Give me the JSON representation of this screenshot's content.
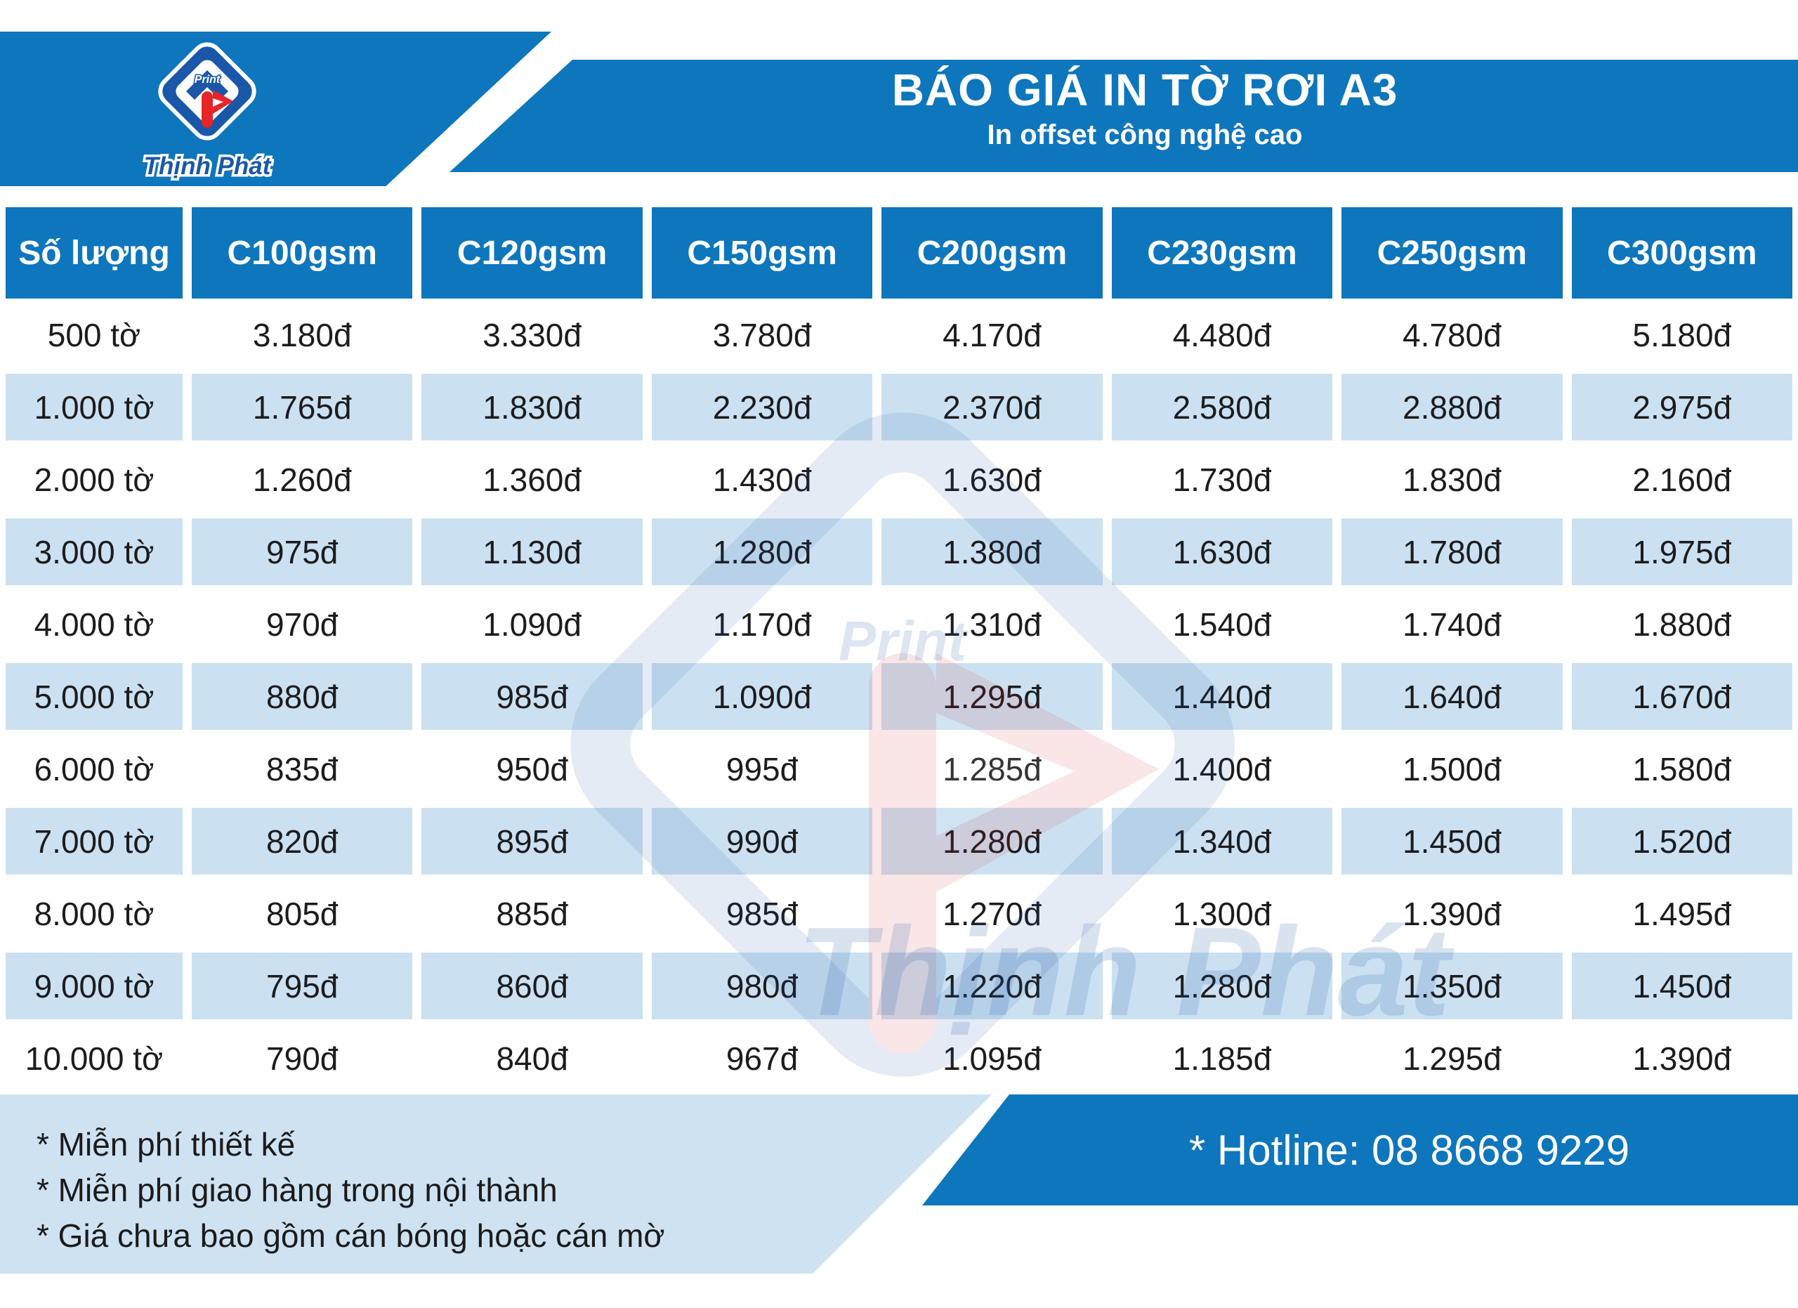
{
  "brand": {
    "name": "Thịnh Phát",
    "print_label": "Print"
  },
  "header": {
    "title": "BÁO GIÁ IN TỜ RƠI A3",
    "subtitle": "In offset công nghệ cao"
  },
  "table": {
    "columns": [
      "Số lượng",
      "C100gsm",
      "C120gsm",
      "C150gsm",
      "C200gsm",
      "C230gsm",
      "C250gsm",
      "C300gsm"
    ],
    "rows": [
      {
        "qty": "500 tờ",
        "prices": [
          "3.180đ",
          "3.330đ",
          "3.780đ",
          "4.170đ",
          "4.480đ",
          "4.780đ",
          "5.180đ"
        ]
      },
      {
        "qty": "1.000 tờ",
        "prices": [
          "1.765đ",
          "1.830đ",
          "2.230đ",
          "2.370đ",
          "2.580đ",
          "2.880đ",
          "2.975đ"
        ]
      },
      {
        "qty": "2.000 tờ",
        "prices": [
          "1.260đ",
          "1.360đ",
          "1.430đ",
          "1.630đ",
          "1.730đ",
          "1.830đ",
          "2.160đ"
        ]
      },
      {
        "qty": "3.000 tờ",
        "prices": [
          "975đ",
          "1.130đ",
          "1.280đ",
          "1.380đ",
          "1.630đ",
          "1.780đ",
          "1.975đ"
        ]
      },
      {
        "qty": "4.000 tờ",
        "prices": [
          "970đ",
          "1.090đ",
          "1.170đ",
          "1.310đ",
          "1.540đ",
          "1.740đ",
          "1.880đ"
        ]
      },
      {
        "qty": "5.000 tờ",
        "prices": [
          "880đ",
          "985đ",
          "1.090đ",
          "1.295đ",
          "1.440đ",
          "1.640đ",
          "1.670đ"
        ]
      },
      {
        "qty": "6.000 tờ",
        "prices": [
          "835đ",
          "950đ",
          "995đ",
          "1.285đ",
          "1.400đ",
          "1.500đ",
          "1.580đ"
        ]
      },
      {
        "qty": "7.000 tờ",
        "prices": [
          "820đ",
          "895đ",
          "990đ",
          "1.280đ",
          "1.340đ",
          "1.450đ",
          "1.520đ"
        ]
      },
      {
        "qty": "8.000 tờ",
        "prices": [
          "805đ",
          "885đ",
          "985đ",
          "1.270đ",
          "1.300đ",
          "1.390đ",
          "1.495đ"
        ]
      },
      {
        "qty": "9.000 tờ",
        "prices": [
          "795đ",
          "860đ",
          "980đ",
          "1.220đ",
          "1.280đ",
          "1.350đ",
          "1.450đ"
        ]
      },
      {
        "qty": "10.000 tờ",
        "prices": [
          "790đ",
          "840đ",
          "967đ",
          "1.095đ",
          "1.185đ",
          "1.295đ",
          "1.390đ"
        ]
      }
    ]
  },
  "notes": [
    "* Miễn phí thiết kế",
    "* Miễn phí giao hàng trong nội thành",
    "* Giá chưa bao gồm cán bóng hoặc cán mờ"
  ],
  "hotline": {
    "text": "* Hotline: 08 8668 9229"
  },
  "colors": {
    "primary_blue": "#0E76BC",
    "light_blue": "#CBE1F1",
    "notes_panel_blue": "#CEE2F2",
    "logo_blue": "#1B57A8",
    "logo_red": "#E52528",
    "text_dark": "#1C1C1E",
    "header_text": "#FFFFFF"
  }
}
